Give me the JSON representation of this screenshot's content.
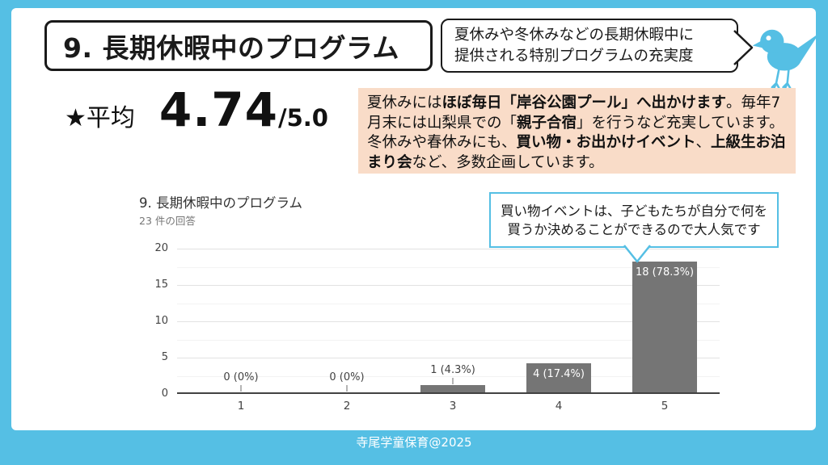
{
  "header": {
    "title": "9. 長期休暇中のプログラム",
    "subtitle_line1": "夏休みや冬休みなどの長期休暇中に",
    "subtitle_line2": "提供される特別プログラムの充実度"
  },
  "average": {
    "label": "★平均",
    "value": "4.74",
    "max": "/5.0"
  },
  "highlight_box": {
    "segments": [
      {
        "text": "夏休みには",
        "bold": false
      },
      {
        "text": "ほぼ毎日「岸谷公園プール」へ出かけます",
        "bold": true
      },
      {
        "text": "。毎年7月末には山梨県での「",
        "bold": false
      },
      {
        "text": "親子合宿",
        "bold": true
      },
      {
        "text": "」を行うなど充実しています。冬休みや春休みにも、",
        "bold": false
      },
      {
        "text": "買い物・お出かけイベント",
        "bold": true
      },
      {
        "text": "、",
        "bold": false
      },
      {
        "text": "上級生お泊まり会",
        "bold": true
      },
      {
        "text": "など、多数企画しています。",
        "bold": false
      }
    ]
  },
  "callout": {
    "line1": "買い物イベントは、子どもたちが自分で何を",
    "line2": "買うか決めることができるので大人気です"
  },
  "chart_data": {
    "type": "bar",
    "title": "9. 長期休暇中のプログラム",
    "subtitle": "23 件の回答",
    "response_count": 23,
    "categories": [
      "1",
      "2",
      "3",
      "4",
      "5"
    ],
    "values": [
      0,
      0,
      1,
      4,
      18
    ],
    "bar_labels": [
      "0 (0%)",
      "0 (0%)",
      "1 (4.3%)",
      "4 (17.4%)",
      "18 (78.3%)"
    ],
    "xlabel": "",
    "ylabel": "",
    "ylim": [
      0,
      20
    ],
    "yticks": [
      0,
      5,
      10,
      15,
      20
    ],
    "grid": true,
    "legend": false,
    "bar_color": "#757575"
  },
  "footer": {
    "text": "寺尾学童保育@2025"
  },
  "colors": {
    "frame_blue": "#55BFE4",
    "highlight_orange": "#F9DCC8",
    "bar_gray": "#757575",
    "callout_border": "#55BFE4",
    "title_border": "#1a1a1a"
  },
  "icons": {
    "bird": "bluebird-mascot",
    "star": "★"
  }
}
